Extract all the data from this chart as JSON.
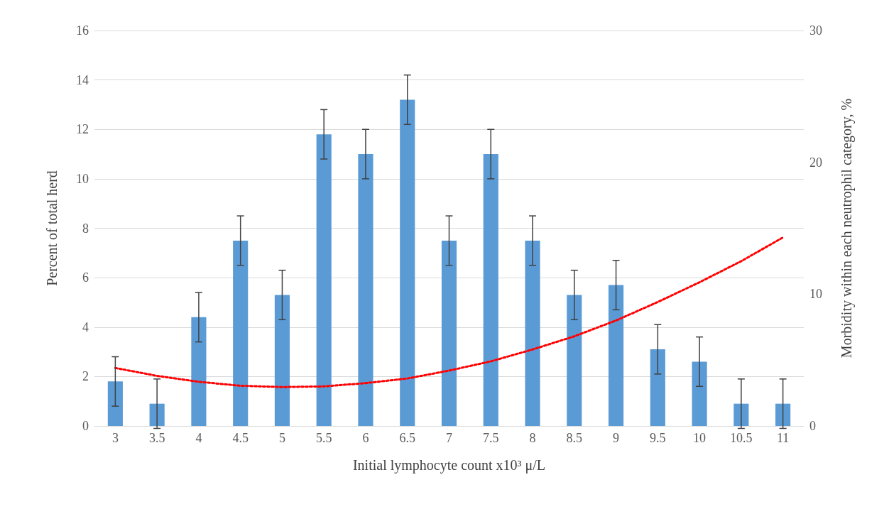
{
  "chart_data": {
    "type": "bar",
    "xlabel": "Initial lymphocyte count x10³ μ/L",
    "ylabel": "Percent of total herd",
    "y2label": "Morbidity within each neutrophil category, %",
    "categories": [
      "3",
      "3.5",
      "4",
      "4.5",
      "5",
      "5.5",
      "6",
      "6.5",
      "7",
      "7.5",
      "8",
      "8.5",
      "9",
      "9.5",
      "10",
      "10.5",
      "11"
    ],
    "series": [
      {
        "color": "#5b9bd5",
        "values": [
          1.8,
          0.9,
          4.4,
          7.5,
          5.3,
          11.8,
          11,
          13.2,
          7.5,
          11,
          7.5,
          5.3,
          5.7,
          3.1,
          2.6,
          0.9,
          0.9
        ],
        "errors": [
          1,
          1,
          1,
          1,
          1,
          1,
          1,
          1,
          1,
          1,
          1,
          1,
          1,
          1,
          1,
          1,
          1
        ]
      },
      {
        "type": "line",
        "axis": "y2",
        "color": "#ff0000",
        "line_style": "dotted",
        "values": [
          4.4,
          3.8,
          3.35,
          3.05,
          2.95,
          3.0,
          3.25,
          3.6,
          4.2,
          4.9,
          5.8,
          6.8,
          8.0,
          9.4,
          10.9,
          12.5,
          14.3
        ]
      }
    ],
    "ylim": [
      0,
      16
    ],
    "yticks": [
      0,
      2,
      4,
      6,
      8,
      10,
      12,
      14,
      16
    ],
    "y2lim": [
      0,
      30
    ],
    "y2ticks": [
      0,
      10,
      20,
      30
    ],
    "grid": "y"
  }
}
